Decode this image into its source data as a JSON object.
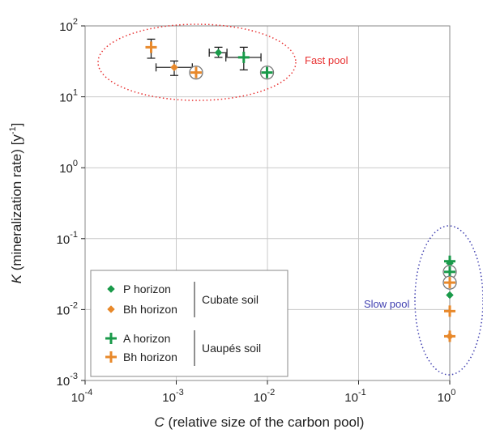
{
  "chart_data": {
    "type": "scatter",
    "x_scale": "log",
    "y_scale": "log",
    "xlim": [
      0.0001,
      1
    ],
    "ylim": [
      0.001,
      100
    ],
    "grid": true,
    "legend_position": "bottom-left",
    "xlabel_var": "C",
    "xlabel_rest": " (relative size of the carbon pool)",
    "ylabel_var": "K",
    "ylabel_rest": " (mineralization rate) [y",
    "ylabel_sup": "-1",
    "ylabel_end": "]",
    "x_ticks": [
      {
        "base": "10",
        "exp": "-4",
        "value": 0.0001
      },
      {
        "base": "10",
        "exp": "-3",
        "value": 0.001
      },
      {
        "base": "10",
        "exp": "-2",
        "value": 0.01
      },
      {
        "base": "10",
        "exp": "-1",
        "value": 0.1
      },
      {
        "base": "10",
        "exp": "0",
        "value": 1
      }
    ],
    "y_ticks": [
      {
        "base": "10",
        "exp": "2",
        "value": 100
      },
      {
        "base": "10",
        "exp": "1",
        "value": 10
      },
      {
        "base": "10",
        "exp": "0",
        "value": 1
      },
      {
        "base": "10",
        "exp": "-1",
        "value": 0.1
      },
      {
        "base": "10",
        "exp": "-2",
        "value": 0.01
      },
      {
        "base": "10",
        "exp": "-3",
        "value": 0.001
      }
    ],
    "colors": {
      "green": "#1a9a4a",
      "orange": "#e8892b",
      "fast": "#e83030",
      "slow": "#4040b0",
      "grid": "#c8c8c8"
    },
    "series": [
      {
        "name": "P horizon",
        "soil": "Cubate soil",
        "marker": "diamond",
        "color": "#1a9a4a",
        "points": [
          {
            "x": 0.0029,
            "y": 42,
            "y_err": [
              36,
              50
            ],
            "x_err": [
              0.0023,
              0.0036
            ],
            "circled": false
          },
          {
            "x": 1.0,
            "y": 0.016,
            "circled": false
          },
          {
            "x": 1.0,
            "y": 0.045,
            "circled": false
          }
        ]
      },
      {
        "name": "Bh horizon",
        "soil": "Cubate soil",
        "marker": "diamond",
        "color": "#e8892b",
        "points": [
          {
            "x": 0.00095,
            "y": 26,
            "y_err": [
              20,
              32
            ],
            "x_err": [
              0.0006,
              0.0015
            ],
            "circled": false
          },
          {
            "x": 1.0,
            "y": 0.0042,
            "circled": false
          }
        ]
      },
      {
        "name": "A horizon",
        "soil": "Uaupés soil",
        "marker": "plus",
        "color": "#1a9a4a",
        "points": [
          {
            "x": 0.0055,
            "y": 36,
            "y_err": [
              24,
              50
            ],
            "x_err": [
              0.0035,
              0.0085
            ],
            "circled": false
          },
          {
            "x": 0.0099,
            "y": 22,
            "circled": true
          },
          {
            "x": 1.0,
            "y": 0.048,
            "circled": false
          },
          {
            "x": 1.0,
            "y": 0.034,
            "circled": true
          }
        ]
      },
      {
        "name": "Bh horizon",
        "soil": "Uaupés soil",
        "marker": "plus",
        "color": "#e8892b",
        "points": [
          {
            "x": 0.00053,
            "y": 50,
            "y_err": [
              35,
              65
            ],
            "circled": false
          },
          {
            "x": 0.00165,
            "y": 22,
            "circled": true
          },
          {
            "x": 1.0,
            "y": 0.024,
            "circled": true
          },
          {
            "x": 1.0,
            "y": 0.0095,
            "circled": false
          },
          {
            "x": 1.0,
            "y": 0.0042,
            "circled": false
          }
        ]
      }
    ],
    "annotations": [
      {
        "text": "Fast pool",
        "color": "#e83030"
      },
      {
        "text": "Slow pool",
        "color": "#4040b0"
      }
    ],
    "legend": {
      "soil_groups": [
        "Cubate soil",
        "Uaupés soil"
      ],
      "entries": [
        {
          "label": "P horizon",
          "marker": "diamond",
          "color": "#1a9a4a"
        },
        {
          "label": "Bh horizon",
          "marker": "diamond",
          "color": "#e8892b"
        },
        {
          "label": "A horizon",
          "marker": "plus",
          "color": "#1a9a4a"
        },
        {
          "label": "Bh horizon",
          "marker": "plus",
          "color": "#e8892b"
        }
      ]
    }
  }
}
